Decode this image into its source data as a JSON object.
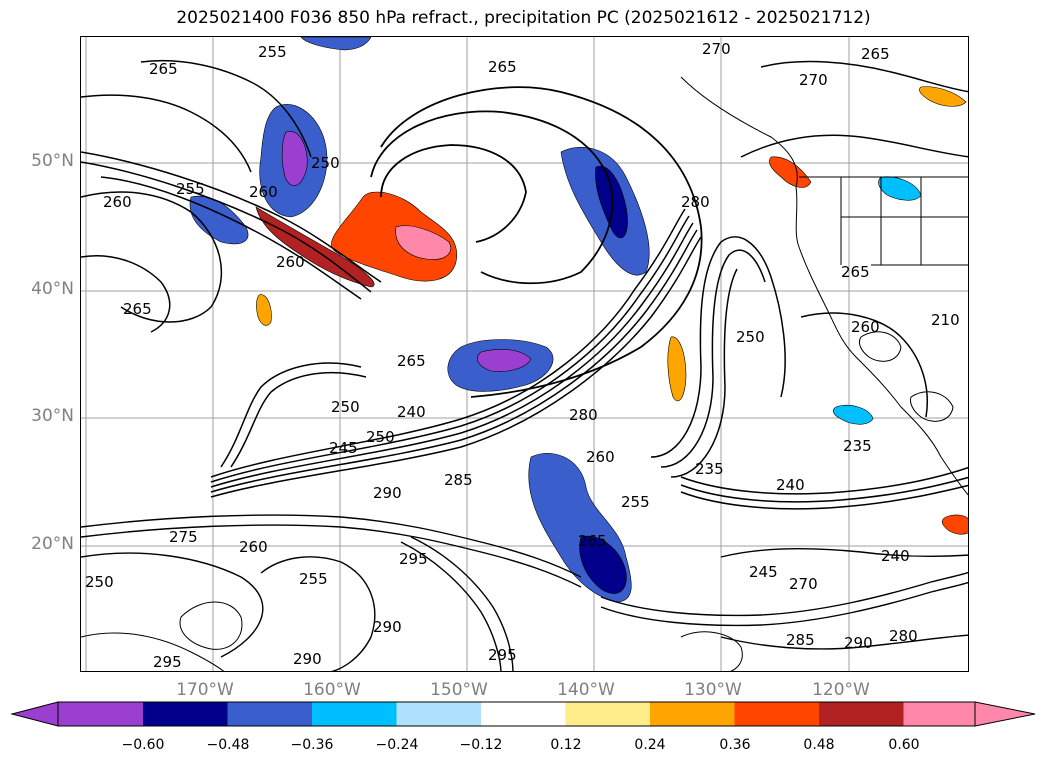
{
  "title": "2025021400 F036 850 hPa refract., precipitation PC (2025021612 - 2025021712)",
  "map": {
    "lat_labels": [
      "50°N",
      "40°N",
      "30°N",
      "20°N"
    ],
    "lon_labels": [
      "170°W",
      "160°W",
      "150°W",
      "140°W",
      "130°W",
      "120°W"
    ],
    "contour_labels": [
      "265",
      "255",
      "250",
      "260",
      "255",
      "265",
      "260",
      "260",
      "270",
      "265",
      "270",
      "265",
      "280",
      "250",
      "265",
      "260",
      "265",
      "250",
      "240",
      "250",
      "245",
      "260",
      "280",
      "255",
      "290",
      "285",
      "235",
      "240",
      "235",
      "275",
      "260",
      "255",
      "295",
      "265",
      "295",
      "290",
      "295",
      "290",
      "285",
      "290",
      "280",
      "240",
      "245",
      "270",
      "250",
      "210"
    ]
  },
  "colorbar": {
    "ticks": [
      "−0.60",
      "−0.48",
      "−0.36",
      "−0.24",
      "−0.12",
      "0.12",
      "0.24",
      "0.36",
      "0.48",
      "0.60"
    ],
    "colors": {
      "under": "#9b3fd0",
      "bins": [
        "#9b3fd0",
        "#00008b",
        "#3a5fcd",
        "#00bfff",
        "#b0e2ff",
        "#ffffff",
        "#ffec8b",
        "#ffa500",
        "#ff4500",
        "#b22222",
        "#ff88aa"
      ],
      "over": "#ff88aa"
    }
  }
}
